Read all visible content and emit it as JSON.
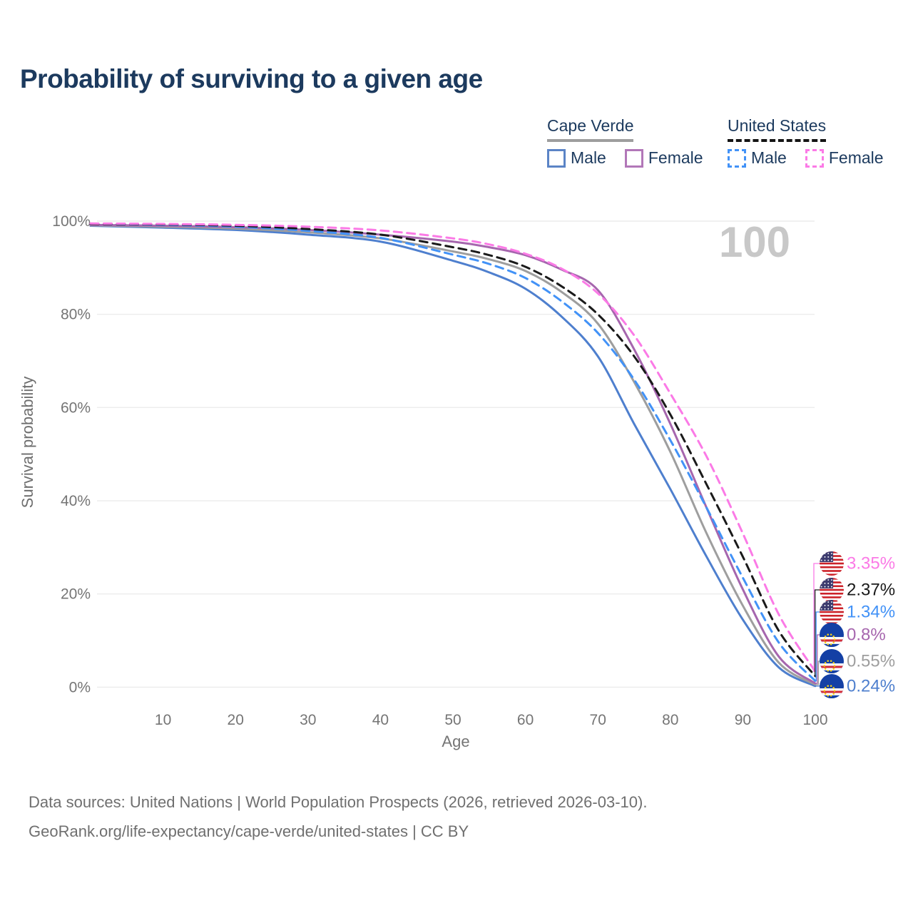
{
  "title": "Probability of surviving to a given age",
  "watermark": "100",
  "legend": {
    "groups": [
      {
        "name": "Cape Verde",
        "underline": {
          "style": "solid",
          "color": "#9e9e9e"
        },
        "items": [
          {
            "label": "Male",
            "color": "#5b84c6",
            "dashed": false
          },
          {
            "label": "Female",
            "color": "#b277b8",
            "dashed": false
          }
        ]
      },
      {
        "name": "United States",
        "underline": {
          "style": "dashed",
          "color": "#141414"
        },
        "items": [
          {
            "label": "Male",
            "color": "#4292f7",
            "dashed": true
          },
          {
            "label": "Female",
            "color": "#fb7ae6",
            "dashed": true
          }
        ]
      }
    ]
  },
  "chart_data": {
    "type": "line",
    "title": "Probability of surviving to a given age",
    "xlabel": "Age",
    "ylabel": "Survival probability",
    "xlim": [
      0,
      100
    ],
    "ylim": [
      0,
      100
    ],
    "grid": "horizontal",
    "x_ticks": [
      10,
      20,
      30,
      40,
      50,
      60,
      70,
      80,
      90,
      100
    ],
    "y_ticks": [
      {
        "value": 100,
        "label": "100%"
      },
      {
        "value": 80,
        "label": "80%"
      },
      {
        "value": 60,
        "label": "60%"
      },
      {
        "value": 40,
        "label": "40%"
      },
      {
        "value": 20,
        "label": "20%"
      },
      {
        "value": 0,
        "label": "0%"
      }
    ],
    "ages": [
      0,
      10,
      20,
      30,
      40,
      50,
      55,
      60,
      65,
      70,
      75,
      80,
      85,
      90,
      95,
      100
    ],
    "series": [
      {
        "name": "Cape Verde Male",
        "country": "Cape Verde",
        "sex": "Male",
        "color": "#4e7fce",
        "dash": "solid",
        "flag": "cv",
        "end_label": "0.24%",
        "values": [
          99.0,
          98.6,
          98.1,
          97.1,
          95.6,
          91.5,
          89.0,
          85.5,
          79.5,
          71.0,
          56.5,
          42.5,
          28.0,
          14.5,
          4.2,
          0.24
        ]
      },
      {
        "name": "Cape Verde",
        "country": "Cape Verde",
        "sex": "All",
        "color": "#9e9e9e",
        "dash": "solid",
        "flag": "cv",
        "end_label": "0.55%",
        "values": [
          99.1,
          98.8,
          98.4,
          97.6,
          96.3,
          93.5,
          91.8,
          89.3,
          84.8,
          78.0,
          65.5,
          50.5,
          33.0,
          17.5,
          5.2,
          0.55
        ]
      },
      {
        "name": "Cape Verde Female",
        "country": "Cape Verde",
        "sex": "Female",
        "color": "#a666ae",
        "dash": "solid",
        "flag": "cv",
        "end_label": "0.8%",
        "values": [
          99.2,
          99.0,
          98.7,
          98.1,
          97.1,
          95.6,
          94.4,
          92.7,
          89.6,
          85.2,
          72.5,
          56.5,
          38.5,
          21.0,
          6.5,
          0.8
        ]
      },
      {
        "name": "United States Male",
        "country": "United States",
        "sex": "Male",
        "color": "#4292f7",
        "dash": "dashed",
        "flag": "us",
        "end_label": "1.34%",
        "values": [
          99.4,
          99.2,
          98.8,
          97.9,
          96.4,
          92.8,
          90.8,
          87.8,
          82.8,
          76.0,
          66.0,
          53.0,
          38.5,
          23.5,
          9.5,
          1.34
        ]
      },
      {
        "name": "United States",
        "country": "United States",
        "sex": "All",
        "color": "#1a1a1a",
        "dash": "dashed",
        "flag": "us",
        "end_label": "2.37%",
        "values": [
          99.4,
          99.3,
          99.0,
          98.3,
          97.1,
          94.4,
          92.7,
          90.2,
          86.0,
          80.0,
          71.0,
          58.5,
          43.5,
          28.0,
          12.0,
          2.37
        ]
      },
      {
        "name": "United States Female",
        "country": "United States",
        "sex": "Female",
        "color": "#fb7ae6",
        "dash": "dashed",
        "flag": "us",
        "end_label": "3.35%",
        "values": [
          99.5,
          99.4,
          99.2,
          98.8,
          98.0,
          96.3,
          95.0,
          93.0,
          89.8,
          84.5,
          75.5,
          63.0,
          49.5,
          33.0,
          15.5,
          3.35
        ]
      }
    ]
  },
  "footer": {
    "line1": "Data sources: United Nations | World Population Prospects (2026, retrieved 2026-03-10).",
    "line2": "GeoRank.org/life-expectancy/cape-verde/united-states | CC BY"
  }
}
